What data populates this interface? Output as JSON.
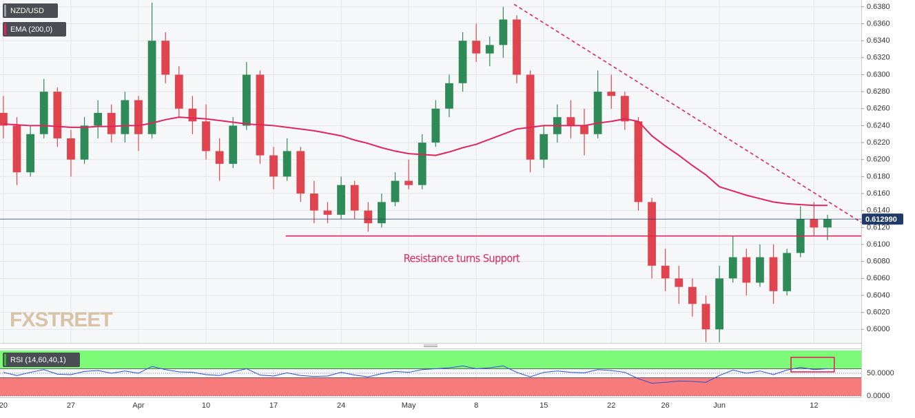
{
  "chart_data": [
    {
      "type": "candlestick",
      "symbol": "NZD/USD",
      "annotation": "Resistance turns Support",
      "watermark": "FXSTREET",
      "x": [
        0,
        1,
        2,
        3,
        4,
        5,
        6,
        7,
        8,
        9,
        10,
        11,
        12,
        13,
        14,
        15,
        16,
        17,
        18,
        19,
        20,
        21,
        22,
        23,
        24,
        25,
        26,
        27,
        28,
        29,
        30,
        31,
        32,
        33,
        34,
        35,
        36,
        37,
        38,
        39,
        40,
        41,
        42,
        43,
        44,
        45,
        46,
        47,
        48,
        49,
        50,
        51,
        52,
        53,
        54,
        55,
        56,
        57,
        58,
        59,
        60,
        61
      ],
      "open": [
        0.6255,
        0.624,
        0.6185,
        0.623,
        0.628,
        0.6225,
        0.62,
        0.624,
        0.6255,
        0.623,
        0.627,
        0.623,
        0.634,
        0.63,
        0.626,
        0.6245,
        0.621,
        0.6195,
        0.624,
        0.63,
        0.6205,
        0.618,
        0.621,
        0.616,
        0.614,
        0.6135,
        0.617,
        0.614,
        0.6125,
        0.615,
        0.6175,
        0.617,
        0.622,
        0.626,
        0.629,
        0.634,
        0.6325,
        0.6335,
        0.6365,
        0.63,
        0.62,
        0.623,
        0.625,
        0.624,
        0.623,
        0.628,
        0.6275,
        0.6245,
        0.615,
        0.6075,
        0.606,
        0.605,
        0.603,
        0.6,
        0.606,
        0.6085,
        0.6055,
        0.6085,
        0.6045,
        0.609,
        0.613,
        0.612
      ],
      "high": [
        0.6275,
        0.625,
        0.624,
        0.6295,
        0.6285,
        0.6235,
        0.625,
        0.627,
        0.6265,
        0.628,
        0.6275,
        0.6385,
        0.635,
        0.631,
        0.6275,
        0.6265,
        0.6225,
        0.625,
        0.6315,
        0.6305,
        0.6215,
        0.6225,
        0.6215,
        0.6175,
        0.615,
        0.618,
        0.6175,
        0.615,
        0.616,
        0.6185,
        0.62,
        0.623,
        0.627,
        0.63,
        0.635,
        0.636,
        0.6345,
        0.638,
        0.637,
        0.6305,
        0.624,
        0.6265,
        0.627,
        0.626,
        0.6305,
        0.63,
        0.628,
        0.625,
        0.6155,
        0.6095,
        0.6075,
        0.606,
        0.604,
        0.6075,
        0.611,
        0.6095,
        0.61,
        0.61,
        0.6095,
        0.6145,
        0.615,
        0.6135
      ],
      "low": [
        0.6225,
        0.617,
        0.618,
        0.6225,
        0.6215,
        0.618,
        0.6195,
        0.6225,
        0.622,
        0.622,
        0.621,
        0.6225,
        0.629,
        0.625,
        0.623,
        0.62,
        0.6175,
        0.619,
        0.6235,
        0.6195,
        0.6165,
        0.6175,
        0.615,
        0.6125,
        0.6125,
        0.613,
        0.613,
        0.6115,
        0.612,
        0.6145,
        0.6165,
        0.6165,
        0.6215,
        0.625,
        0.628,
        0.6315,
        0.631,
        0.632,
        0.629,
        0.6185,
        0.619,
        0.622,
        0.6225,
        0.6205,
        0.6225,
        0.626,
        0.6235,
        0.614,
        0.606,
        0.6045,
        0.603,
        0.6015,
        0.5985,
        0.5985,
        0.6055,
        0.604,
        0.605,
        0.603,
        0.604,
        0.6085,
        0.611,
        0.6105
      ],
      "close": [
        0.624,
        0.6185,
        0.623,
        0.628,
        0.6225,
        0.62,
        0.624,
        0.6255,
        0.623,
        0.627,
        0.623,
        0.634,
        0.63,
        0.626,
        0.6245,
        0.621,
        0.6195,
        0.624,
        0.63,
        0.6205,
        0.618,
        0.621,
        0.616,
        0.614,
        0.6135,
        0.617,
        0.614,
        0.6125,
        0.615,
        0.6175,
        0.617,
        0.622,
        0.626,
        0.629,
        0.634,
        0.6325,
        0.6335,
        0.6365,
        0.63,
        0.62,
        0.623,
        0.625,
        0.624,
        0.623,
        0.628,
        0.6275,
        0.6245,
        0.615,
        0.6075,
        0.606,
        0.605,
        0.603,
        0.6,
        0.606,
        0.6085,
        0.6055,
        0.6085,
        0.6045,
        0.609,
        0.613,
        0.612,
        0.613
      ],
      "up_color": "#2e8b57",
      "down_color": "#e0454f",
      "series": [
        {
          "name": "EMA (200,0)",
          "color": "#e0245e",
          "values": [
            0.6242,
            0.6241,
            0.624,
            0.624,
            0.6239,
            0.6238,
            0.6238,
            0.6239,
            0.6239,
            0.624,
            0.624,
            0.6243,
            0.6247,
            0.625,
            0.6249,
            0.6248,
            0.6246,
            0.6244,
            0.6242,
            0.6241,
            0.624,
            0.6238,
            0.6236,
            0.6234,
            0.6231,
            0.6228,
            0.6223,
            0.6219,
            0.6214,
            0.621,
            0.6207,
            0.6206,
            0.6205,
            0.6209,
            0.6214,
            0.6218,
            0.6224,
            0.623,
            0.6236,
            0.6238,
            0.624,
            0.624,
            0.624,
            0.624,
            0.6243,
            0.6245,
            0.6248,
            0.6245,
            0.6228,
            0.6216,
            0.6205,
            0.6193,
            0.6182,
            0.6168,
            0.6163,
            0.6158,
            0.6154,
            0.615,
            0.6148,
            0.6147,
            0.6146,
            0.6146
          ]
        }
      ],
      "support": {
        "value": 0.611,
        "x_start": 20.9,
        "color": "#e0245e"
      },
      "trendline": {
        "x": [
          37.8,
          63.5
        ],
        "y": [
          0.6383,
          0.6126
        ],
        "color": "#e0245e"
      },
      "current_price": {
        "value": 0.61299,
        "label": "0.612990",
        "color": "#1f3a68"
      },
      "xlim": [
        -0.25,
        63.5
      ],
      "ylim": [
        0.5984,
        0.6388
      ],
      "xticks": [
        {
          "value": 0,
          "label": "20"
        },
        {
          "value": 5,
          "label": "27"
        },
        {
          "value": 10,
          "label": "Apr"
        },
        {
          "value": 15,
          "label": "10"
        },
        {
          "value": 20,
          "label": "17"
        },
        {
          "value": 25,
          "label": "24"
        },
        {
          "value": 30,
          "label": "May"
        },
        {
          "value": 35,
          "label": "8"
        },
        {
          "value": 40,
          "label": "15"
        },
        {
          "value": 45,
          "label": "22"
        },
        {
          "value": 49,
          "label": "26"
        },
        {
          "value": 53,
          "label": "Jun"
        },
        {
          "value": 60,
          "label": "12"
        }
      ],
      "yticks": [
        {
          "value": 0.6,
          "label": "0.6000"
        },
        {
          "value": 0.602,
          "label": "0.6020"
        },
        {
          "value": 0.604,
          "label": "0.6040"
        },
        {
          "value": 0.606,
          "label": "0.6060"
        },
        {
          "value": 0.608,
          "label": "0.6080"
        },
        {
          "value": 0.61,
          "label": "0.6100"
        },
        {
          "value": 0.612,
          "label": "0.6120"
        },
        {
          "value": 0.614,
          "label": "0.6140"
        },
        {
          "value": 0.616,
          "label": "0.6160"
        },
        {
          "value": 0.618,
          "label": "0.6180"
        },
        {
          "value": 0.62,
          "label": "0.6200"
        },
        {
          "value": 0.622,
          "label": "0.6220"
        },
        {
          "value": 0.624,
          "label": "0.6240"
        },
        {
          "value": 0.626,
          "label": "0.6260"
        },
        {
          "value": 0.628,
          "label": "0.6280"
        },
        {
          "value": 0.63,
          "label": "0.6300"
        },
        {
          "value": 0.632,
          "label": "0.6320"
        },
        {
          "value": 0.634,
          "label": "0.6340"
        },
        {
          "value": 0.636,
          "label": "0.6360"
        },
        {
          "value": 0.638,
          "label": "0.6380"
        }
      ],
      "grid": true
    },
    {
      "type": "line",
      "name": "RSI (14,60,40,1)",
      "x": [
        0,
        1,
        2,
        3,
        4,
        5,
        6,
        7,
        8,
        9,
        10,
        11,
        12,
        13,
        14,
        15,
        16,
        17,
        18,
        19,
        20,
        21,
        22,
        23,
        24,
        25,
        26,
        27,
        28,
        29,
        30,
        31,
        32,
        33,
        34,
        35,
        36,
        37,
        38,
        39,
        40,
        41,
        42,
        43,
        44,
        45,
        46,
        47,
        48,
        49,
        50,
        51,
        52,
        53,
        54,
        55,
        56,
        57,
        58,
        59,
        60,
        61
      ],
      "values": [
        52,
        45,
        52,
        58,
        48,
        47,
        54,
        56,
        50,
        55,
        50,
        65,
        58,
        53,
        52,
        47,
        45,
        53,
        60,
        46,
        44,
        51,
        45,
        43,
        44,
        52,
        46,
        42,
        49,
        54,
        52,
        58,
        60,
        62,
        66,
        60,
        62,
        66,
        52,
        42,
        52,
        55,
        52,
        51,
        58,
        56,
        52,
        38,
        28,
        30,
        33,
        32,
        30,
        45,
        57,
        50,
        55,
        47,
        57,
        63,
        58,
        60
      ],
      "color": "#2b4fd6",
      "upper_zone": [
        60,
        100
      ],
      "lower_zone": [
        0,
        40
      ],
      "upper_color": "#7dfb78",
      "lower_color": "#f77b7b",
      "highlight": {
        "x": [
          58.3,
          61.5
        ],
        "y": [
          53,
          85
        ],
        "color": "#e0245e"
      },
      "xlim": [
        -0.25,
        63.5
      ],
      "ylim": [
        0,
        100
      ],
      "yticks": [
        {
          "value": 0,
          "label": "0.0000"
        },
        {
          "value": 50,
          "label": "50.0000"
        }
      ]
    }
  ]
}
